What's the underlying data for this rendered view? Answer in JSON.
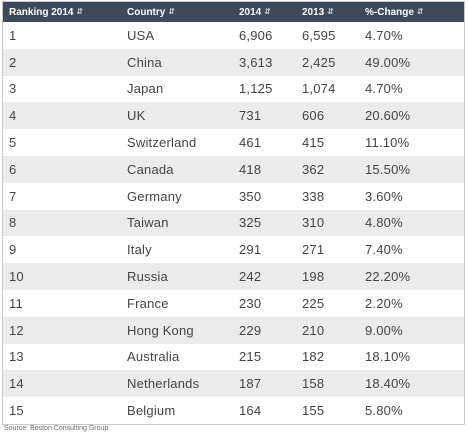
{
  "headers": {
    "ranking": "Ranking 2014",
    "country": "Country",
    "y2014": "2014",
    "y2013": "2013",
    "change": "%-Change"
  },
  "rows": [
    {
      "rank": "1",
      "country": "USA",
      "y2014": "6,906",
      "y2013": "6,595",
      "change": "4.70%"
    },
    {
      "rank": "2",
      "country": "China",
      "y2014": "3,613",
      "y2013": "2,425",
      "change": "49.00%"
    },
    {
      "rank": "3",
      "country": "Japan",
      "y2014": "1,125",
      "y2013": "1,074",
      "change": "4.70%"
    },
    {
      "rank": "4",
      "country": "UK",
      "y2014": "731",
      "y2013": "606",
      "change": "20.60%"
    },
    {
      "rank": "5",
      "country": "Switzerland",
      "y2014": "461",
      "y2013": "415",
      "change": "11.10%"
    },
    {
      "rank": "6",
      "country": "Canada",
      "y2014": "418",
      "y2013": "362",
      "change": "15.50%"
    },
    {
      "rank": "7",
      "country": "Germany",
      "y2014": "350",
      "y2013": "338",
      "change": "3.60%"
    },
    {
      "rank": "8",
      "country": "Taiwan",
      "y2014": "325",
      "y2013": "310",
      "change": "4.80%"
    },
    {
      "rank": "9",
      "country": "Italy",
      "y2014": "291",
      "y2013": "271",
      "change": "7.40%"
    },
    {
      "rank": "10",
      "country": "Russia",
      "y2014": "242",
      "y2013": "198",
      "change": "22.20%"
    },
    {
      "rank": "11",
      "country": "France",
      "y2014": "230",
      "y2013": "225",
      "change": "2.20%"
    },
    {
      "rank": "12",
      "country": "Hong Kong",
      "y2014": "229",
      "y2013": "210",
      "change": "9.00%"
    },
    {
      "rank": "13",
      "country": "Australia",
      "y2014": "215",
      "y2013": "182",
      "change": "18.10%"
    },
    {
      "rank": "14",
      "country": "Netherlands",
      "y2014": "187",
      "y2013": "158",
      "change": "18.40%"
    },
    {
      "rank": "15",
      "country": "Belgium",
      "y2014": "164",
      "y2013": "155",
      "change": "5.80%"
    }
  ],
  "source": "Source: Boston Consulting Group",
  "colors": {
    "header_bg": "#3e4a5a",
    "header_text": "#ffffff",
    "row_alt_bg": "#ebebeb",
    "text": "#444444"
  },
  "icons": {
    "sort": "sort-icon"
  }
}
